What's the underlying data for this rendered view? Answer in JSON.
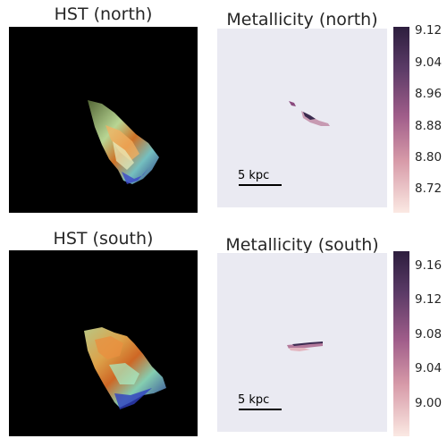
{
  "figure": {
    "panels": [
      {
        "title": "HST (north)"
      },
      {
        "title": "Metallicity (north)",
        "scalebar": "5 kpc"
      },
      {
        "title": "HST (south)"
      },
      {
        "title": "Metallicity (south)",
        "scalebar": "5 kpc"
      }
    ]
  },
  "chart_data": [
    {
      "type": "heatmap",
      "title": "Metallicity (north)",
      "colorbar": {
        "min": 8.66,
        "max": 9.13,
        "ticks": [
          9.12,
          9.04,
          8.96,
          8.88,
          8.8,
          8.72
        ]
      },
      "scalebar": "5 kpc"
    },
    {
      "type": "heatmap",
      "title": "Metallicity (south)",
      "colorbar": {
        "min": 8.96,
        "max": 9.18,
        "ticks": [
          9.16,
          9.12,
          9.08,
          9.04,
          9.0
        ]
      },
      "scalebar": "5 kpc"
    }
  ],
  "colors": {
    "cbar_top": "#2d1e3e",
    "cbar_mid": "#a05d8a",
    "cbar_bottom": "#fbe9e3",
    "panel_bg": "#eaeaf2"
  }
}
